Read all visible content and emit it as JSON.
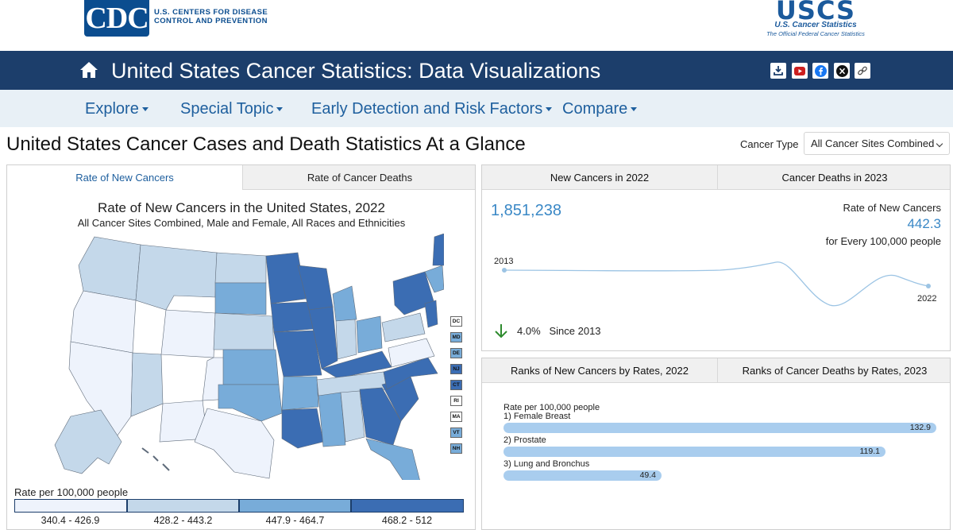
{
  "header": {
    "cdc_logo": "CDC",
    "cdc_text_line1": "U.S. CENTERS FOR DISEASE",
    "cdc_text_line2": "CONTROL AND PREVENTION",
    "uscs_logo": "USCS",
    "uscs_sub1": "U.S. Cancer Statistics",
    "uscs_sub2": "The Official Federal Cancer Statistics"
  },
  "title_bar": {
    "title": "United States Cancer Statistics: Data Visualizations",
    "share_icons": [
      "download-icon",
      "youtube-icon",
      "facebook-icon",
      "x-icon",
      "link-icon"
    ]
  },
  "nav": {
    "items": [
      "Explore",
      "Special Topic",
      "Early Detection and Risk Factors",
      "Compare"
    ]
  },
  "page": {
    "title": "United States Cancer Cases and Death Statistics At a Glance",
    "cancer_type_label": "Cancer Type",
    "cancer_type_value": "All Cancer Sites Combined"
  },
  "map_panel": {
    "tabs": [
      "Rate of New Cancers",
      "Rate of Cancer Deaths"
    ],
    "title": "Rate of New Cancers in the United States, 2022",
    "subtitle": "All Cancer Sites Combined, Male and Female, All Races and Ethnicities",
    "small_states": [
      "DC",
      "MD",
      "DE",
      "NJ",
      "CT",
      "RI",
      "MA",
      "VT",
      "NH"
    ],
    "legend_label": "Rate per 100,000 people",
    "legend": [
      {
        "range": "340.4 - 426.9",
        "color": "#eef3fc"
      },
      {
        "range": "428.2 - 443.2",
        "color": "#c4d8ea"
      },
      {
        "range": "447.9 - 464.7",
        "color": "#78acd9"
      },
      {
        "range": "468.2 - 512",
        "color": "#3b6db3"
      }
    ]
  },
  "summary_panel": {
    "tabs": [
      "New Cancers in 2022",
      "Cancer Deaths in 2023"
    ],
    "count": "1,851,238",
    "rate_label": "Rate of New Cancers",
    "rate_value": "442.3",
    "rate_unit": "for Every 100,000 people",
    "start_year": "2013",
    "end_year": "2022",
    "change_pct": "4.0%",
    "change_label": "Since 2013",
    "line_color": "#9cc4e4"
  },
  "ranks_panel": {
    "tabs": [
      "Ranks of New Cancers by Rates, 2022",
      "Ranks of Cancer Deaths by Rates, 2023"
    ],
    "subtitle": "Rate per 100,000 people",
    "items": [
      {
        "name": "1) Female Breast",
        "value": "132.9"
      },
      {
        "name": "2) Prostate",
        "value": "119.1"
      },
      {
        "name": "3) Lung and Bronchus",
        "value": "49.4"
      }
    ]
  }
}
